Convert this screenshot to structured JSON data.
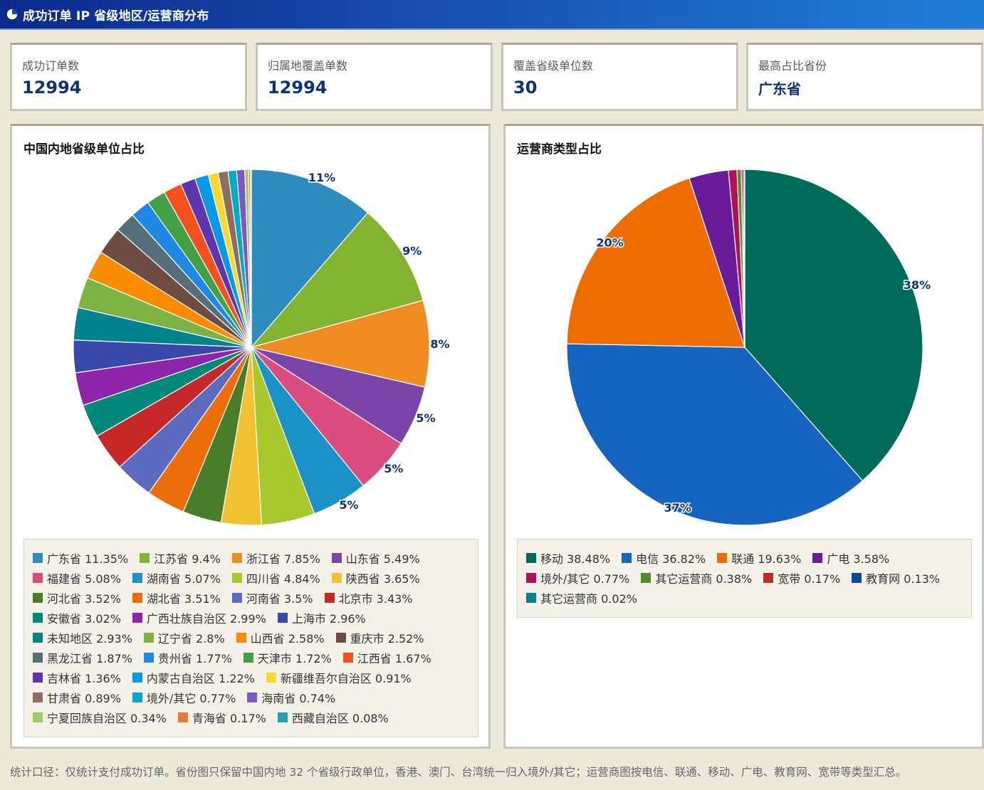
{
  "window": {
    "title": "成功订单 IP 省级地区/运营商分布",
    "icon": "pie-chart-icon"
  },
  "cards": [
    {
      "label": "成功订单数",
      "value": "12994"
    },
    {
      "label": "归属地覆盖单数",
      "value": "12994"
    },
    {
      "label": "覆盖省级单位数",
      "value": "30"
    },
    {
      "label": "最高占比省份",
      "value": "广东省"
    }
  ],
  "footnote": "统计口径：仅统计支付成功订单。省份图只保留中国内地 32 个省级行政单位，香港、澳门、台湾统一归入境外/其它；运营商图按电信、联通、移动、广电、教育网、宽带等类型汇总。",
  "chart_data": [
    {
      "type": "pie",
      "title": "中国内地省级单位占比",
      "slices": [
        {
          "name": "广东省",
          "value": 11.35,
          "color": "#2e8bbd"
        },
        {
          "name": "江苏省",
          "value": 9.4,
          "color": "#83b431"
        },
        {
          "name": "浙江省",
          "value": 7.85,
          "color": "#f08c21"
        },
        {
          "name": "山东省",
          "value": 5.49,
          "color": "#7a44a8"
        },
        {
          "name": "福建省",
          "value": 5.08,
          "color": "#dc4d7f"
        },
        {
          "name": "湖南省",
          "value": 5.07,
          "color": "#1a92c8"
        },
        {
          "name": "四川省",
          "value": 4.84,
          "color": "#a9c82c"
        },
        {
          "name": "陕西省",
          "value": 3.65,
          "color": "#f0c230"
        },
        {
          "name": "河北省",
          "value": 3.52,
          "color": "#4a7d2a"
        },
        {
          "name": "湖北省",
          "value": 3.51,
          "color": "#ec6e0a"
        },
        {
          "name": "河南省",
          "value": 3.5,
          "color": "#5c6bc0"
        },
        {
          "name": "北京市",
          "value": 3.43,
          "color": "#c62828"
        },
        {
          "name": "安徽省",
          "value": 3.02,
          "color": "#00897b"
        },
        {
          "name": "广西壮族自治区",
          "value": 2.99,
          "color": "#8e24aa"
        },
        {
          "name": "上海市",
          "value": 2.96,
          "color": "#3949ab"
        },
        {
          "name": "未知地区",
          "value": 2.93,
          "color": "#00838f"
        },
        {
          "name": "辽宁省",
          "value": 2.8,
          "color": "#7cb342"
        },
        {
          "name": "山西省",
          "value": 2.58,
          "color": "#fb8c00"
        },
        {
          "name": "重庆市",
          "value": 2.52,
          "color": "#6d4c41"
        },
        {
          "name": "黑龙江省",
          "value": 1.87,
          "color": "#546e7a"
        },
        {
          "name": "贵州省",
          "value": 1.77,
          "color": "#1e88e5"
        },
        {
          "name": "天津市",
          "value": 1.72,
          "color": "#43a047"
        },
        {
          "name": "江西省",
          "value": 1.67,
          "color": "#f4511e"
        },
        {
          "name": "吉林省",
          "value": 1.36,
          "color": "#5e35b1"
        },
        {
          "name": "内蒙古自治区",
          "value": 1.22,
          "color": "#039be5"
        },
        {
          "name": "新疆维吾尔自治区",
          "value": 0.91,
          "color": "#fdd835"
        },
        {
          "name": "甘肃省",
          "value": 0.89,
          "color": "#8d6e63"
        },
        {
          "name": "境外/其它",
          "value": 0.77,
          "color": "#00acc1"
        },
        {
          "name": "海南省",
          "value": 0.74,
          "color": "#7e57c2"
        },
        {
          "name": "宁夏回族自治区",
          "value": 0.34,
          "color": "#9ccc65"
        },
        {
          "name": "青海省",
          "value": 0.17,
          "color": "#e07b39"
        },
        {
          "name": "西藏自治区",
          "value": 0.08,
          "color": "#26a0b0"
        }
      ],
      "data_labels": [
        "11%",
        "9%",
        "8%",
        "5%",
        "5%",
        "5%"
      ],
      "legend": "bottom"
    },
    {
      "type": "pie",
      "title": "运营商类型占比",
      "slices": [
        {
          "name": "移动",
          "value": 38.48,
          "color": "#006b5a"
        },
        {
          "name": "电信",
          "value": 36.82,
          "color": "#1565c0"
        },
        {
          "name": "联通",
          "value": 19.63,
          "color": "#ef6c00"
        },
        {
          "name": "广电",
          "value": 3.58,
          "color": "#6a1b9a"
        },
        {
          "name": "境外/其它",
          "value": 0.77,
          "color": "#ad1457"
        },
        {
          "name": "其它运营商",
          "value": 0.38,
          "color": "#558b2f"
        },
        {
          "name": "宽带",
          "value": 0.17,
          "color": "#c62828"
        },
        {
          "name": "教育网",
          "value": 0.13,
          "color": "#0d47a1"
        },
        {
          "name": "其它运营商",
          "value": 0.02,
          "color": "#00838f"
        }
      ],
      "data_labels": [
        "38%",
        "37%",
        "20%"
      ],
      "legend": "bottom"
    }
  ]
}
